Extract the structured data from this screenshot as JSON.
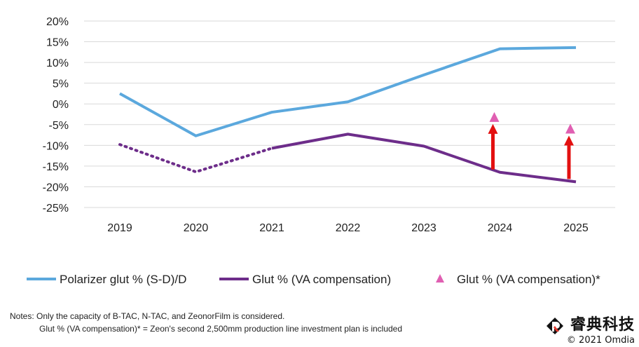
{
  "chart_data": {
    "type": "line",
    "categories": [
      "2019",
      "2020",
      "2021",
      "2022",
      "2023",
      "2024",
      "2025"
    ],
    "ylim": [
      -25,
      20
    ],
    "yticks": [
      20,
      15,
      10,
      5,
      0,
      -5,
      -10,
      -15,
      -20,
      -25
    ],
    "ytick_labels": [
      "20%",
      "15%",
      "10%",
      "5%",
      "0%",
      "-5%",
      "-10%",
      "-15%",
      "-20%",
      "-25%"
    ],
    "grid": true,
    "legend_position": "bottom",
    "series": [
      {
        "name": "Polarizer glut % (S-D)/D",
        "color": "#5ba8dd",
        "values": [
          2.5,
          -7.7,
          -2.0,
          0.5,
          7.0,
          13.3,
          13.6
        ],
        "style": "solid"
      },
      {
        "name": "Glut % (VA compensation)",
        "color": "#6d2d8a",
        "values": [
          -9.8,
          -16.4,
          -10.7,
          -7.3,
          -10.2,
          -16.5,
          -18.8
        ],
        "style": "dotted-then-solid",
        "dotted_until_index": 2
      },
      {
        "name": "Glut % (VA compensation)*",
        "color": "#e05fb2",
        "marker": "triangle",
        "points": [
          {
            "category": "2024",
            "value": -3.5,
            "from": -16.5
          },
          {
            "category": "2025",
            "value": -6.3,
            "from": -18.8
          }
        ],
        "arrow_color": "#e31010"
      }
    ]
  },
  "notes": {
    "line1": "Notes: Only the capacity of B-TAC, N-TAC, and ZeonorFilm is considered.",
    "line2": "Glut % (VA compensation)* = Zeon's second 2,500mm production line investment plan is included"
  },
  "watermark": {
    "brand": "睿典科技",
    "copyright": "© 2021 Omdia"
  }
}
